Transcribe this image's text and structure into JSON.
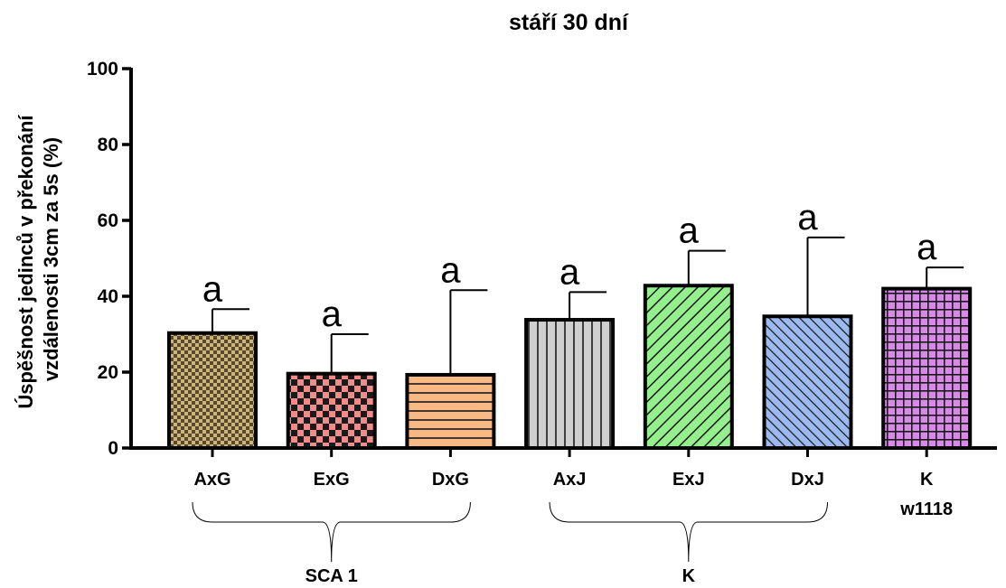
{
  "chart_data": {
    "type": "bar",
    "title": "stáří 30 dní",
    "ylabel": [
      "Úspěšnost jedinců v překonání",
      "vzdálenosti 3cm za 5s (%)"
    ],
    "xlabel": "",
    "ylim": [
      0,
      100
    ],
    "yticks": [
      0,
      20,
      40,
      60,
      80,
      100
    ],
    "categories": [
      "AxG",
      "ExG",
      "DxG",
      "AxJ",
      "ExJ",
      "DxJ",
      "K\nw1118"
    ],
    "category_lines": [
      [
        "AxG"
      ],
      [
        "ExG"
      ],
      [
        "DxG"
      ],
      [
        "AxJ"
      ],
      [
        "ExJ"
      ],
      [
        "DxJ"
      ],
      [
        "K",
        "w1118"
      ]
    ],
    "values": [
      30.3,
      19.6,
      19.3,
      33.8,
      42.8,
      34.7,
      42.0
    ],
    "errors_upper": [
      6.3,
      10.4,
      22.3,
      7.3,
      9.2,
      20.8,
      5.6
    ],
    "significance": [
      "a",
      "a",
      "a",
      "a",
      "a",
      "a",
      "a"
    ],
    "bar_colors": [
      "#c9b57d",
      "#f28c8c",
      "#f9b985",
      "#cfcfcf",
      "#96ef8e",
      "#9cb9f0",
      "#d98ae9"
    ],
    "bar_patterns": [
      "checker-fine",
      "checker",
      "horizontal",
      "vertical",
      "diagonal",
      "diagonal-dense",
      "grid"
    ],
    "groups": [
      {
        "label": "SCA 1",
        "from": 0,
        "to": 2
      },
      {
        "label": "K",
        "from": 3,
        "to": 5
      }
    ],
    "grid": false,
    "legend": "none"
  }
}
